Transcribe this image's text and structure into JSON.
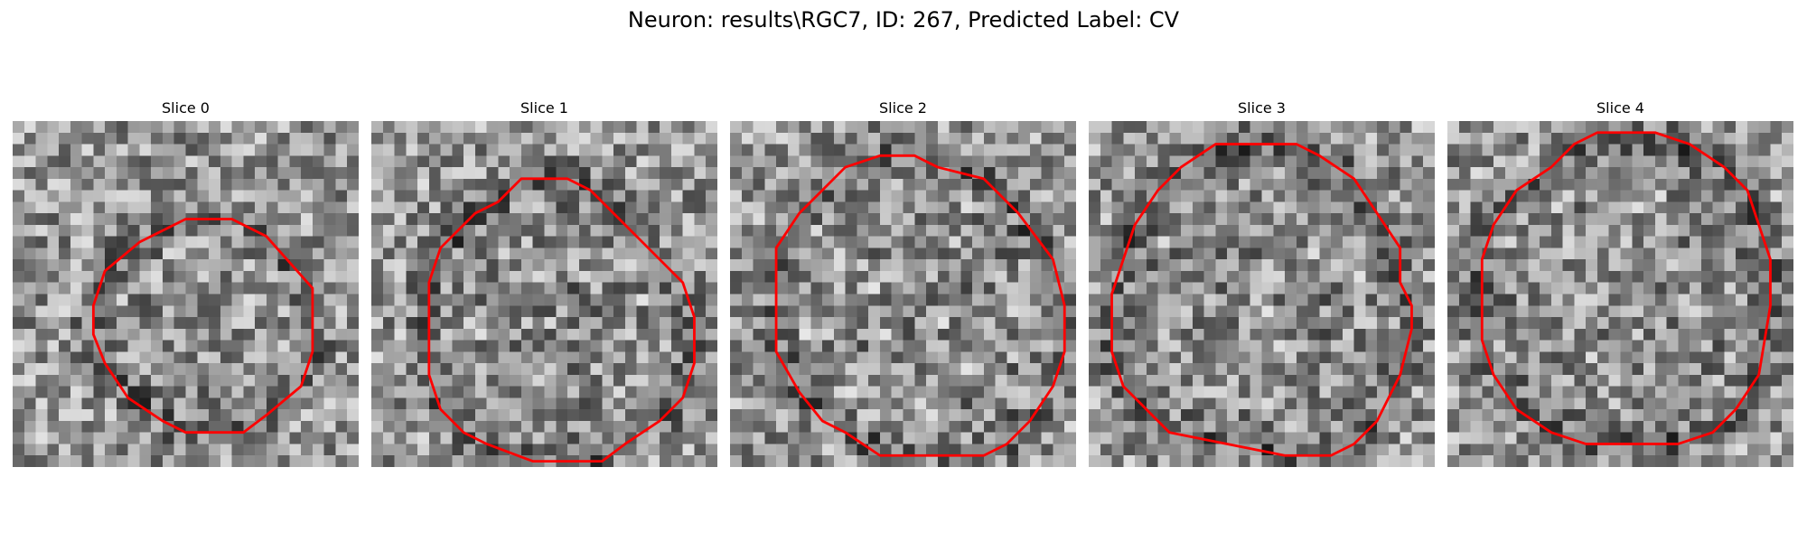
{
  "figure": {
    "title": "Neuron: results\\RGC7, ID: 267, Predicted Label: CV",
    "colormap": "gray",
    "contour_color": "#ff0000"
  },
  "panels": [
    {
      "title": "Slice 0",
      "contour": [
        [
          15,
          8.5
        ],
        [
          19,
          8.5
        ],
        [
          22,
          10
        ],
        [
          26,
          14.5
        ],
        [
          26,
          20
        ],
        [
          25,
          23
        ],
        [
          22,
          25.5
        ],
        [
          20,
          27
        ],
        [
          15,
          27
        ],
        [
          13,
          26
        ],
        [
          10,
          24
        ],
        [
          8,
          21
        ],
        [
          7,
          18.5
        ],
        [
          7,
          16
        ],
        [
          8,
          13
        ],
        [
          11,
          10.5
        ],
        [
          13,
          9.5
        ]
      ]
    },
    {
      "title": "Slice 1",
      "contour": [
        [
          13,
          5
        ],
        [
          17,
          5
        ],
        [
          19,
          6
        ],
        [
          24,
          11
        ],
        [
          27,
          14
        ],
        [
          28,
          17
        ],
        [
          28,
          21
        ],
        [
          27,
          24
        ],
        [
          25,
          26
        ],
        [
          22,
          28
        ],
        [
          20,
          29.5
        ],
        [
          14,
          29.5
        ],
        [
          10,
          28
        ],
        [
          8,
          27
        ],
        [
          6,
          25
        ],
        [
          5,
          22
        ],
        [
          5,
          14
        ],
        [
          6,
          11
        ],
        [
          9,
          8
        ],
        [
          11,
          7
        ]
      ]
    },
    {
      "title": "Slice 2",
      "contour": [
        [
          13,
          3
        ],
        [
          16,
          3
        ],
        [
          18,
          4
        ],
        [
          22,
          5
        ],
        [
          25,
          8
        ],
        [
          28,
          12
        ],
        [
          29,
          16
        ],
        [
          29,
          20
        ],
        [
          28,
          23
        ],
        [
          26,
          26
        ],
        [
          24,
          28
        ],
        [
          22,
          29
        ],
        [
          13,
          29
        ],
        [
          10,
          27
        ],
        [
          8,
          26
        ],
        [
          6,
          23.5
        ],
        [
          4,
          20
        ],
        [
          4,
          11
        ],
        [
          6,
          8
        ],
        [
          8,
          6
        ],
        [
          10,
          4
        ]
      ]
    },
    {
      "title": "Slice 3",
      "contour": [
        [
          11,
          2
        ],
        [
          18,
          2
        ],
        [
          20,
          3
        ],
        [
          23,
          5
        ],
        [
          25,
          8
        ],
        [
          27,
          11
        ],
        [
          27,
          14
        ],
        [
          28,
          16
        ],
        [
          28,
          18
        ],
        [
          27,
          22
        ],
        [
          25,
          26
        ],
        [
          23,
          28
        ],
        [
          21,
          29
        ],
        [
          17,
          29
        ],
        [
          12,
          28
        ],
        [
          7,
          27
        ],
        [
          5,
          25
        ],
        [
          3,
          23
        ],
        [
          2,
          20
        ],
        [
          2,
          15
        ],
        [
          3,
          12
        ],
        [
          4,
          9
        ],
        [
          6,
          6
        ],
        [
          8,
          4
        ]
      ]
    },
    {
      "title": "Slice 4",
      "contour": [
        [
          13,
          1
        ],
        [
          18,
          1
        ],
        [
          21,
          2
        ],
        [
          24,
          4
        ],
        [
          26,
          6
        ],
        [
          27,
          9
        ],
        [
          28,
          12
        ],
        [
          28,
          16
        ],
        [
          27.5,
          19
        ],
        [
          27,
          22
        ],
        [
          25,
          25
        ],
        [
          23,
          27
        ],
        [
          20,
          28
        ],
        [
          12,
          28
        ],
        [
          9,
          27
        ],
        [
          6,
          25
        ],
        [
          4,
          22
        ],
        [
          3,
          19
        ],
        [
          3,
          12
        ],
        [
          4,
          9
        ],
        [
          6,
          6
        ],
        [
          9,
          4
        ],
        [
          11,
          2
        ]
      ]
    }
  ]
}
